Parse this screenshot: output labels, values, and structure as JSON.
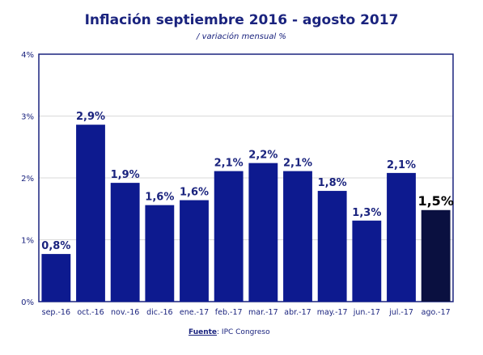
{
  "chart_data": {
    "type": "bar",
    "title": "Inflación septiembre 2016 - agosto  2017",
    "subtitle": "/ variación mensual %",
    "categories": [
      "sep.-16",
      "oct.-16",
      "nov.-16",
      "dic.-16",
      "ene.-17",
      "feb.-17",
      "mar.-17",
      "abr.-17",
      "may.-17",
      "jun.-17",
      "jul.-17",
      "ago.-17"
    ],
    "values": [
      0.8,
      2.9,
      1.9,
      1.6,
      1.6,
      2.1,
      2.2,
      2.1,
      1.8,
      1.3,
      2.1,
      1.5
    ],
    "value_labels": [
      "0,8%",
      "2,9%",
      "1,9%",
      "1,6%",
      "1,6%",
      "2,1%",
      "2,2%",
      "2,1%",
      "1,8%",
      "1,3%",
      "2,1%",
      "1,5%"
    ],
    "bar_heights": [
      0.77,
      2.86,
      1.92,
      1.56,
      1.64,
      2.11,
      2.24,
      2.11,
      1.79,
      1.31,
      2.08,
      1.48
    ],
    "yticks": [
      "0%",
      "1%",
      "2%",
      "3%",
      "4%"
    ],
    "ylim": [
      0,
      4
    ],
    "grid": true,
    "colors": {
      "bar": "#0d1a8f",
      "highlight": "#0a1040",
      "text": "#1a237e",
      "grid": "#d9d9d9",
      "frame": "#1a237e"
    },
    "highlight_index": 11
  },
  "source": {
    "label": "Fuente",
    "text": ": IPC Congreso"
  }
}
